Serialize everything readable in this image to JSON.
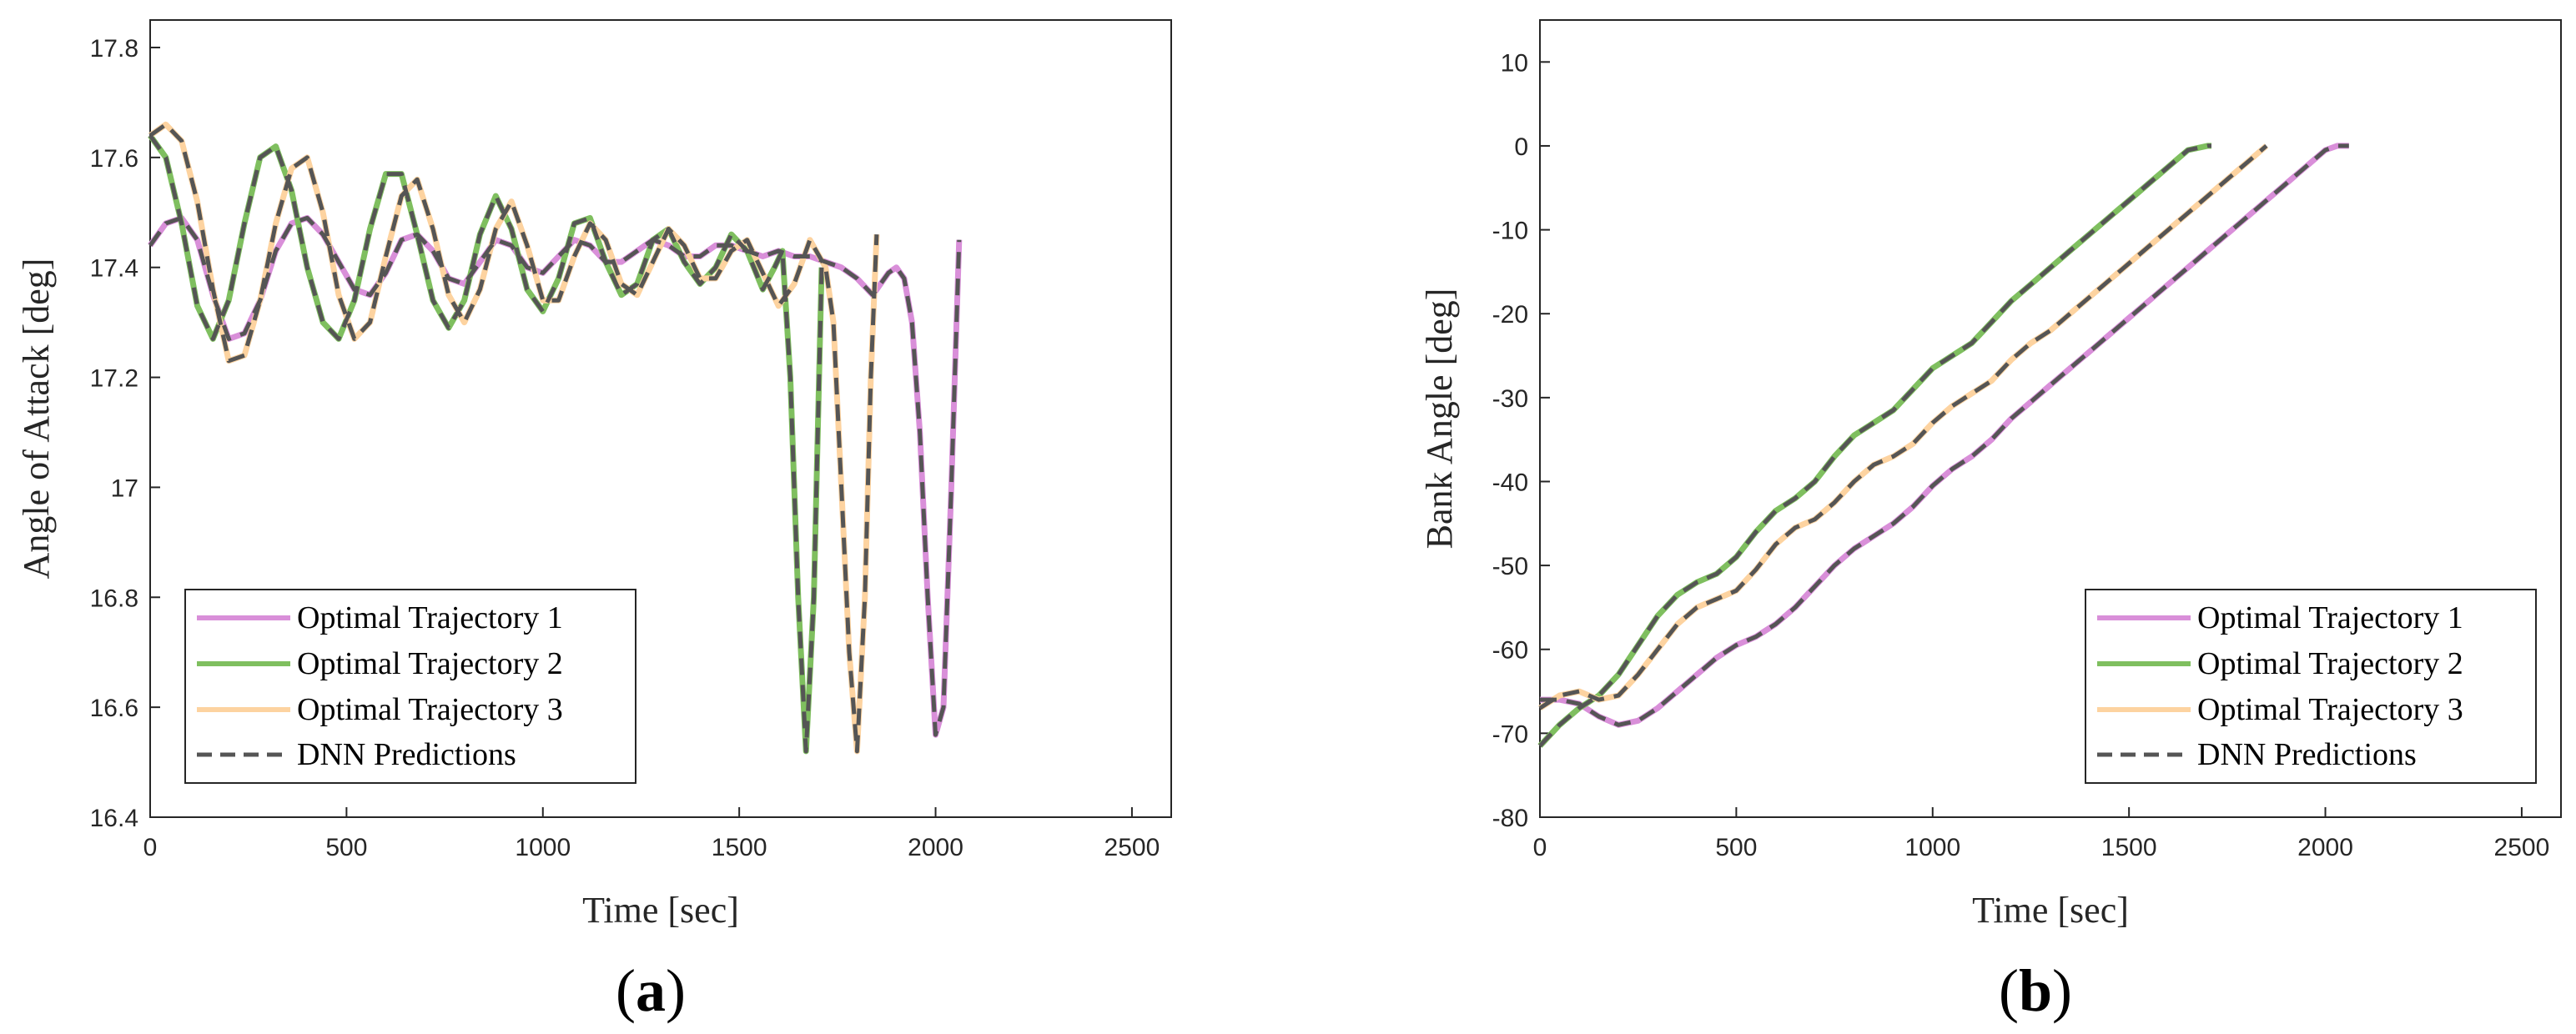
{
  "chart_data": [
    {
      "type": "line",
      "panel_label": "a",
      "xlabel": "Time [sec]",
      "ylabel": "Angle of Attack [deg]",
      "xlim": [
        0,
        2600
      ],
      "ylim": [
        16.4,
        17.85
      ],
      "xticks": [
        0,
        500,
        1000,
        1500,
        2000,
        2500
      ],
      "yticks": [
        16.4,
        16.6,
        16.8,
        17,
        17.2,
        17.4,
        17.6,
        17.8
      ],
      "grid": false,
      "legend_position": "bottom-left",
      "legend": [
        "Optimal Trajectory 1",
        "Optimal Trajectory 2",
        "Optimal Trajectory 3",
        "DNN Predictions"
      ],
      "series": [
        {
          "name": "Optimal Trajectory 1",
          "color": "#d98fd9",
          "x": [
            0,
            40,
            80,
            120,
            160,
            200,
            240,
            280,
            320,
            360,
            400,
            440,
            480,
            520,
            560,
            600,
            640,
            680,
            720,
            760,
            800,
            840,
            880,
            920,
            960,
            1000,
            1040,
            1080,
            1120,
            1160,
            1200,
            1240,
            1280,
            1320,
            1360,
            1400,
            1440,
            1480,
            1520,
            1560,
            1600,
            1640,
            1680,
            1720,
            1760,
            1800,
            1840,
            1880,
            1900,
            1920,
            1940,
            1960,
            1980,
            2000,
            2020,
            2040,
            2060
          ],
          "values": [
            17.44,
            17.48,
            17.49,
            17.45,
            17.35,
            17.27,
            17.28,
            17.34,
            17.43,
            17.48,
            17.49,
            17.46,
            17.41,
            17.36,
            17.35,
            17.39,
            17.45,
            17.46,
            17.43,
            17.38,
            17.37,
            17.41,
            17.45,
            17.44,
            17.4,
            17.39,
            17.42,
            17.45,
            17.44,
            17.41,
            17.41,
            17.43,
            17.45,
            17.44,
            17.42,
            17.42,
            17.44,
            17.44,
            17.43,
            17.42,
            17.43,
            17.42,
            17.42,
            17.41,
            17.4,
            17.38,
            17.35,
            17.39,
            17.4,
            17.38,
            17.3,
            17.1,
            16.8,
            16.55,
            16.6,
            17.0,
            17.45
          ]
        },
        {
          "name": "Optimal Trajectory 2",
          "color": "#7fbf5f",
          "x": [
            0,
            40,
            80,
            120,
            160,
            200,
            240,
            280,
            320,
            360,
            400,
            440,
            480,
            520,
            560,
            600,
            640,
            680,
            720,
            760,
            800,
            840,
            880,
            920,
            960,
            1000,
            1040,
            1080,
            1120,
            1160,
            1200,
            1240,
            1280,
            1320,
            1360,
            1400,
            1440,
            1480,
            1520,
            1560,
            1590,
            1610,
            1630,
            1650,
            1670,
            1690,
            1710
          ],
          "values": [
            17.64,
            17.6,
            17.48,
            17.33,
            17.27,
            17.34,
            17.48,
            17.6,
            17.62,
            17.54,
            17.4,
            17.3,
            17.27,
            17.34,
            17.47,
            17.57,
            17.57,
            17.46,
            17.34,
            17.29,
            17.34,
            17.46,
            17.53,
            17.47,
            17.36,
            17.32,
            17.38,
            17.48,
            17.49,
            17.41,
            17.35,
            17.37,
            17.45,
            17.47,
            17.41,
            17.37,
            17.4,
            17.46,
            17.43,
            17.36,
            17.4,
            17.43,
            17.2,
            16.8,
            16.52,
            16.8,
            17.4
          ]
        },
        {
          "name": "Optimal Trajectory 3",
          "color": "#fdd3a0",
          "x": [
            0,
            40,
            80,
            120,
            160,
            200,
            240,
            280,
            320,
            360,
            400,
            440,
            480,
            520,
            560,
            600,
            640,
            680,
            720,
            760,
            800,
            840,
            880,
            920,
            960,
            1000,
            1040,
            1080,
            1120,
            1160,
            1200,
            1240,
            1280,
            1320,
            1360,
            1400,
            1440,
            1480,
            1520,
            1560,
            1600,
            1640,
            1680,
            1720,
            1740,
            1760,
            1780,
            1800,
            1820,
            1835,
            1850
          ],
          "values": [
            17.64,
            17.66,
            17.63,
            17.52,
            17.36,
            17.23,
            17.24,
            17.34,
            17.48,
            17.58,
            17.6,
            17.5,
            17.35,
            17.27,
            17.3,
            17.42,
            17.53,
            17.56,
            17.47,
            17.35,
            17.3,
            17.36,
            17.47,
            17.52,
            17.44,
            17.34,
            17.34,
            17.42,
            17.48,
            17.45,
            17.37,
            17.35,
            17.41,
            17.47,
            17.44,
            17.38,
            17.38,
            17.43,
            17.45,
            17.39,
            17.33,
            17.37,
            17.45,
            17.4,
            17.3,
            17.0,
            16.7,
            16.52,
            16.8,
            17.2,
            17.46
          ]
        },
        {
          "name": "DNN Predictions",
          "color": "#555555",
          "dashed": true,
          "overlays": [
            "Optimal Trajectory 1",
            "Optimal Trajectory 2",
            "Optimal Trajectory 3"
          ]
        }
      ]
    },
    {
      "type": "line",
      "panel_label": "b",
      "xlabel": "Time [sec]",
      "ylabel": "Bank Angle [deg]",
      "xlim": [
        0,
        2600
      ],
      "ylim": [
        -80,
        15
      ],
      "xticks": [
        0,
        500,
        1000,
        1500,
        2000,
        2500
      ],
      "yticks": [
        -80,
        -70,
        -60,
        -50,
        -40,
        -30,
        -20,
        -10,
        0,
        10
      ],
      "grid": false,
      "legend_position": "bottom-right",
      "legend": [
        "Optimal Trajectory 1",
        "Optimal Trajectory 2",
        "Optimal Trajectory 3",
        "DNN Predictions"
      ],
      "series": [
        {
          "name": "Optimal Trajectory 1",
          "color": "#d98fd9",
          "x": [
            0,
            50,
            100,
            150,
            200,
            250,
            300,
            350,
            400,
            450,
            500,
            550,
            600,
            650,
            700,
            750,
            800,
            850,
            900,
            950,
            1000,
            1050,
            1100,
            1150,
            1200,
            1250,
            1300,
            1350,
            1400,
            1450,
            1500,
            1550,
            1600,
            1650,
            1700,
            1750,
            1800,
            1850,
            1900,
            1950,
            2000,
            2030,
            2060
          ],
          "values": [
            -66,
            -66,
            -66.5,
            -68,
            -69,
            -68.5,
            -67,
            -65,
            -63,
            -61,
            -59.5,
            -58.5,
            -57,
            -55,
            -52.5,
            -50,
            -48,
            -46.5,
            -45,
            -43,
            -40.5,
            -38.5,
            -37,
            -35,
            -32.5,
            -30.5,
            -28.5,
            -26.5,
            -24.5,
            -22.5,
            -20.5,
            -18.5,
            -16.5,
            -14.5,
            -12.5,
            -10.5,
            -8.5,
            -6.5,
            -4.5,
            -2.5,
            -0.5,
            0,
            0
          ]
        },
        {
          "name": "Optimal Trajectory 2",
          "color": "#7fbf5f",
          "x": [
            0,
            50,
            100,
            150,
            200,
            250,
            300,
            350,
            400,
            450,
            500,
            550,
            600,
            650,
            700,
            750,
            800,
            850,
            900,
            950,
            1000,
            1050,
            1100,
            1150,
            1200,
            1250,
            1300,
            1350,
            1400,
            1450,
            1500,
            1550,
            1600,
            1650,
            1700,
            1710
          ],
          "values": [
            -71.5,
            -69,
            -67,
            -65.5,
            -63,
            -59.5,
            -56,
            -53.5,
            -52,
            -51,
            -49,
            -46,
            -43.5,
            -42,
            -40,
            -37,
            -34.5,
            -33,
            -31.5,
            -29,
            -26.5,
            -25,
            -23.5,
            -21,
            -18.5,
            -16.5,
            -14.5,
            -12.5,
            -10.5,
            -8.5,
            -6.5,
            -4.5,
            -2.5,
            -0.5,
            0,
            0
          ]
        },
        {
          "name": "Optimal Trajectory 3",
          "color": "#fdd3a0",
          "x": [
            0,
            50,
            100,
            150,
            200,
            250,
            300,
            350,
            400,
            450,
            500,
            550,
            600,
            650,
            700,
            750,
            800,
            850,
            900,
            950,
            1000,
            1050,
            1100,
            1150,
            1200,
            1250,
            1300,
            1350,
            1400,
            1450,
            1500,
            1550,
            1600,
            1650,
            1700,
            1750,
            1800,
            1850
          ],
          "values": [
            -67,
            -65.5,
            -65,
            -66,
            -65.5,
            -63,
            -60,
            -57,
            -55,
            -54,
            -53,
            -50.5,
            -47.5,
            -45.5,
            -44.5,
            -42.5,
            -40,
            -38,
            -37,
            -35.5,
            -33,
            -31,
            -29.5,
            -28,
            -25.5,
            -23.5,
            -22,
            -20,
            -18,
            -16,
            -14,
            -12,
            -10,
            -8,
            -6,
            -4,
            -2,
            0
          ]
        },
        {
          "name": "DNN Predictions",
          "color": "#555555",
          "dashed": true,
          "overlays": [
            "Optimal Trajectory 1",
            "Optimal Trajectory 2",
            "Optimal Trajectory 3"
          ]
        }
      ]
    }
  ]
}
